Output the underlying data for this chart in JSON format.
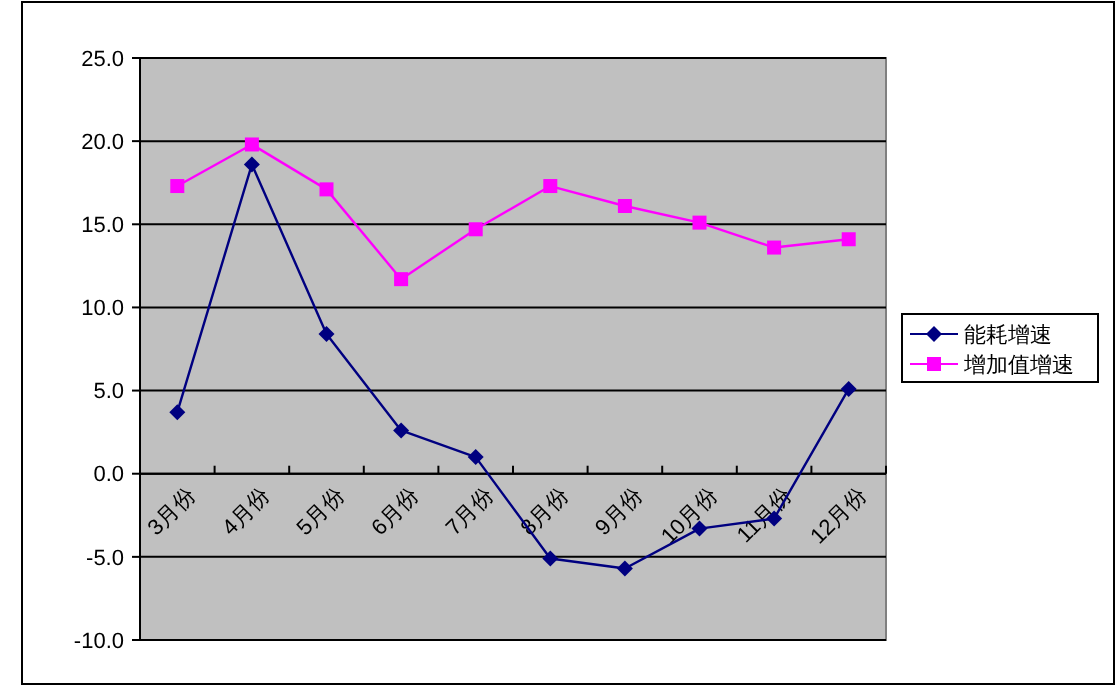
{
  "chart_data": {
    "type": "line",
    "categories": [
      "3月份",
      "4月份",
      "5月份",
      "6月份",
      "7月份",
      "8月份",
      "9月份",
      "10月份",
      "11月份",
      "12月份"
    ],
    "series": [
      {
        "name": "能耗增速",
        "color": "#000080",
        "marker": "diamond",
        "values": [
          3.7,
          18.6,
          8.4,
          2.6,
          1.0,
          -5.1,
          -5.7,
          -3.3,
          -2.7,
          5.1
        ]
      },
      {
        "name": "增加值增速",
        "color": "#ff00ff",
        "marker": "square",
        "values": [
          17.3,
          19.8,
          17.1,
          11.7,
          14.7,
          17.3,
          16.1,
          15.1,
          13.6,
          14.1
        ]
      }
    ],
    "ylim": [
      -10,
      25
    ],
    "yticks": [
      {
        "value": -10,
        "label": "-10.0"
      },
      {
        "value": -5,
        "label": "-5.0"
      },
      {
        "value": 0,
        "label": "0.0"
      },
      {
        "value": 5,
        "label": "5.0"
      },
      {
        "value": 10,
        "label": "10.0"
      },
      {
        "value": 15,
        "label": "15.0"
      },
      {
        "value": 20,
        "label": "20.0"
      },
      {
        "value": 25,
        "label": "25.0"
      }
    ],
    "grid": "y",
    "legend": "right"
  }
}
